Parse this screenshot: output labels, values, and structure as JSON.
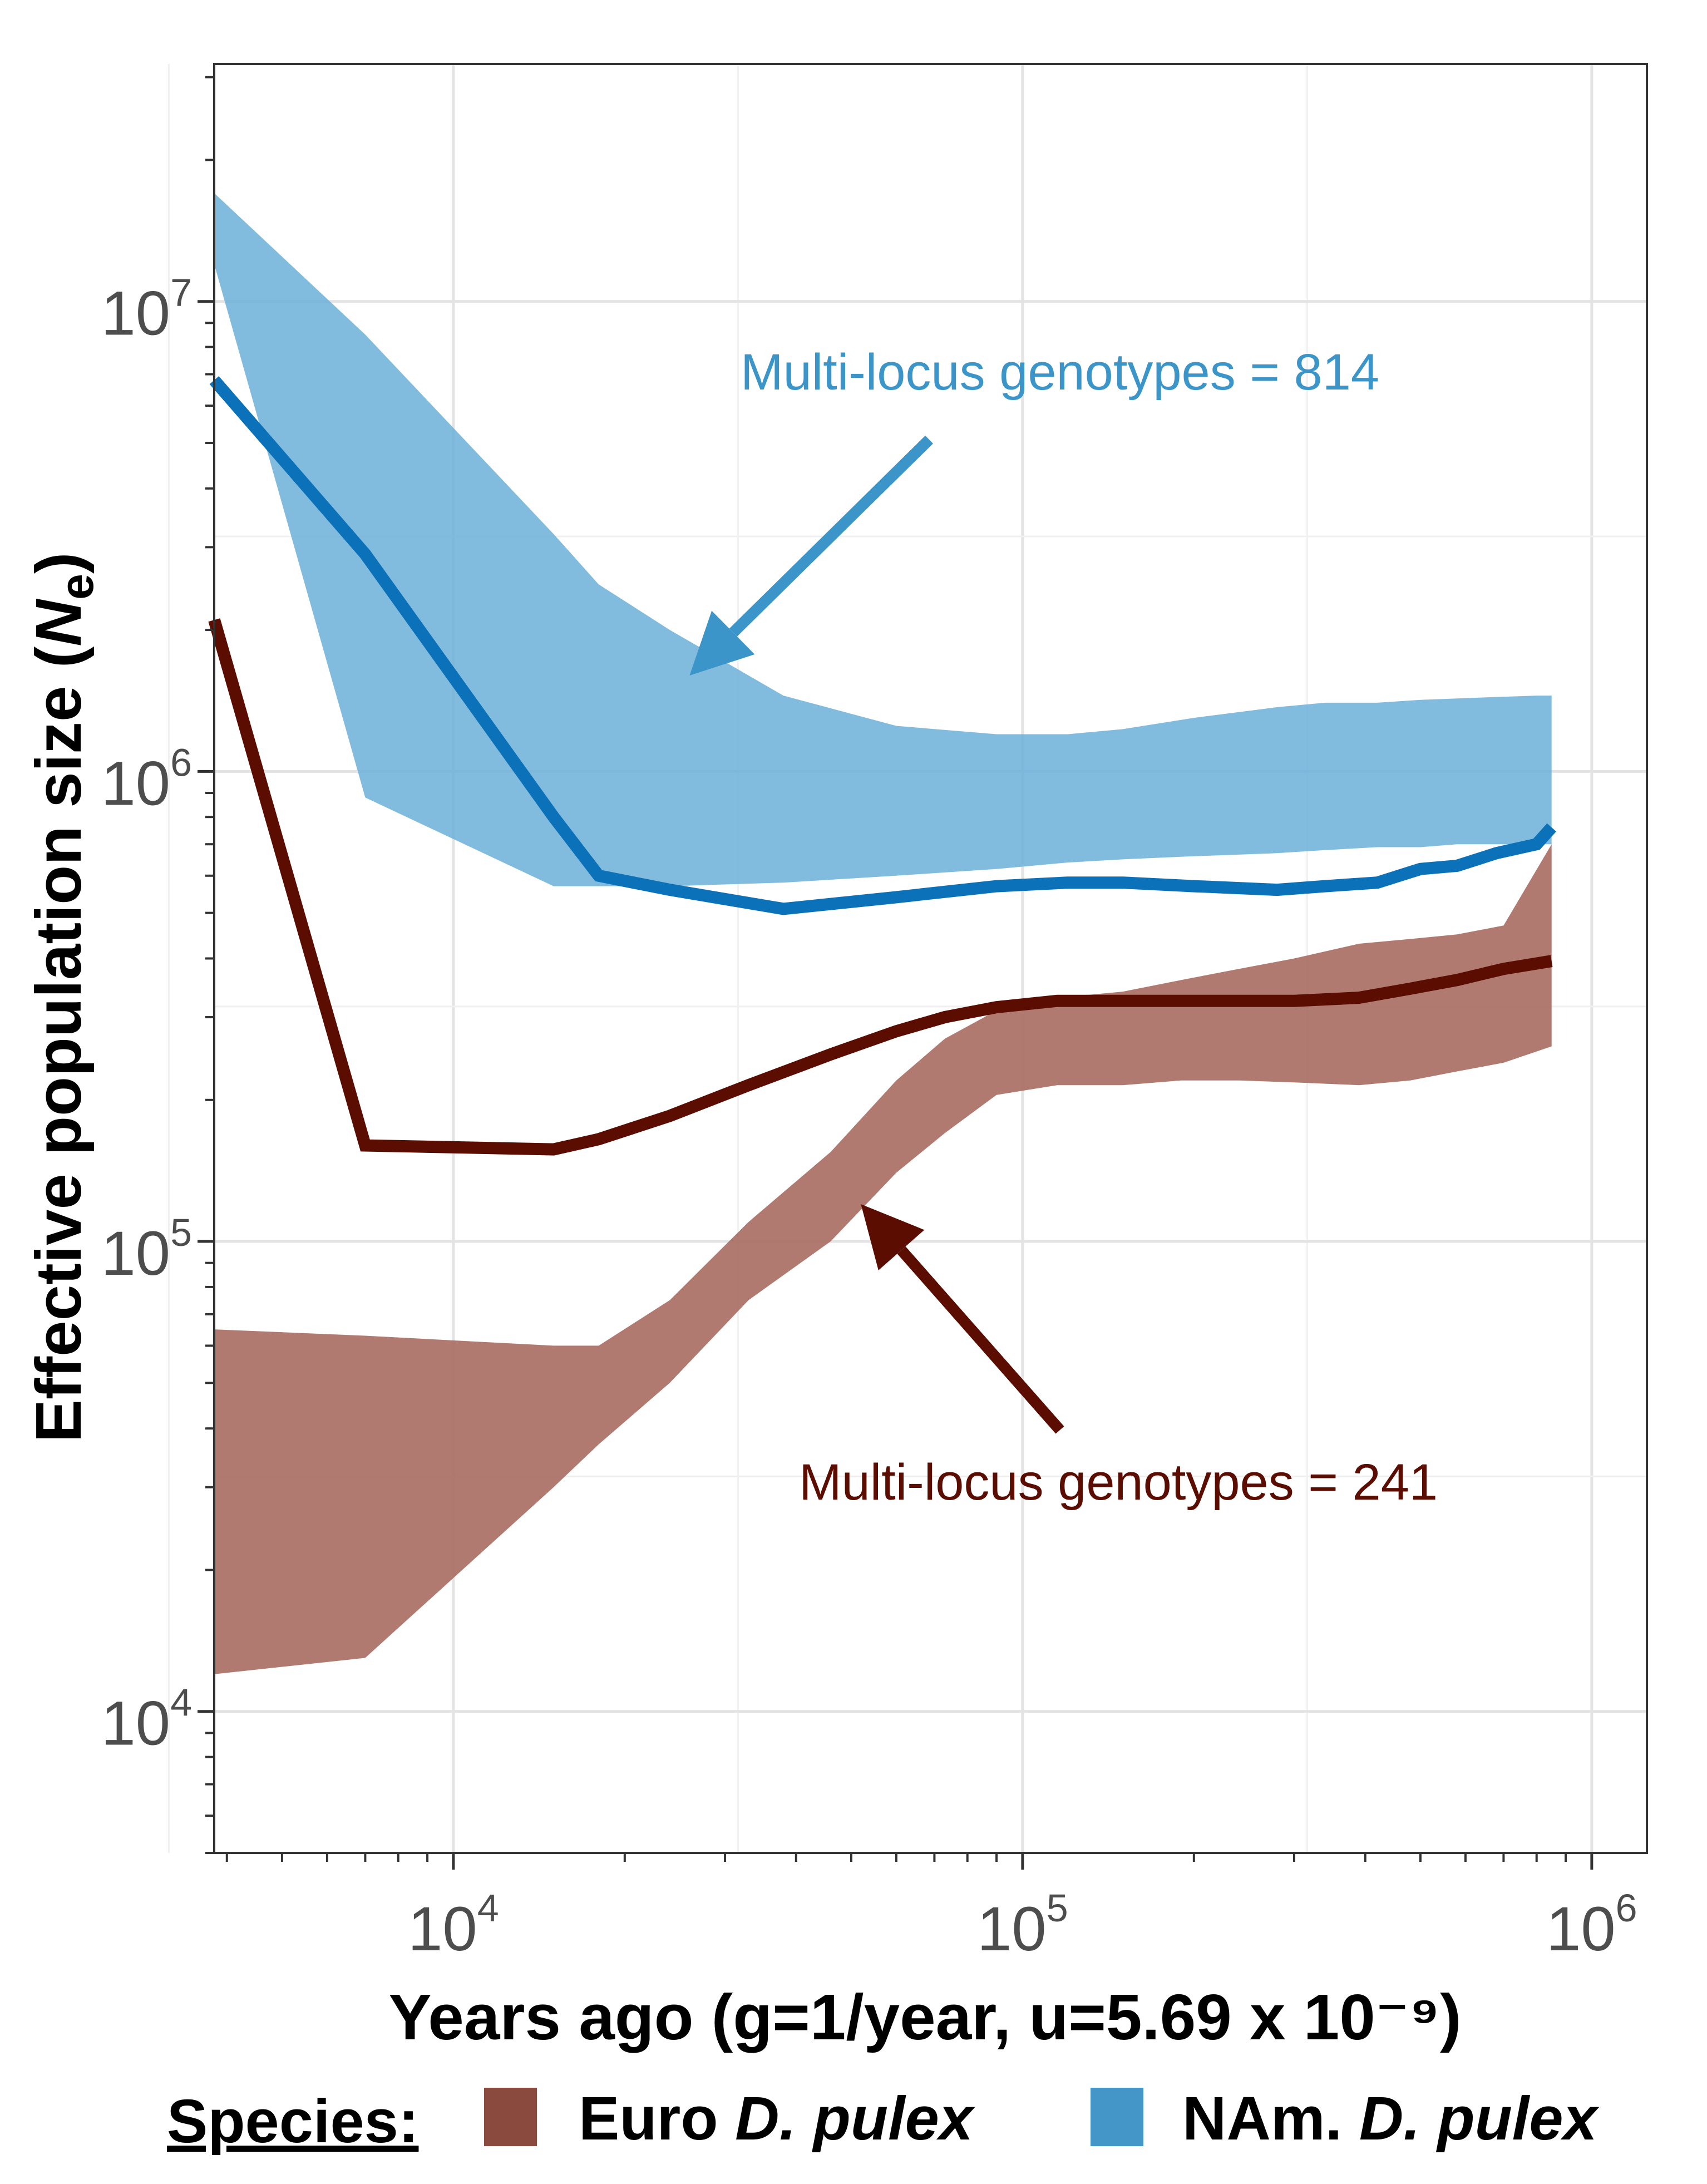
{
  "chart_data": {
    "type": "area",
    "xlabel": "Years ago (g=1/year, u=5.69 x 10⁻⁹)",
    "ylabel_main": "Effective population size (",
    "ylabel_var": "N",
    "ylabel_sub": "e",
    "ylabel_close": ")",
    "x_scale": "log",
    "y_scale": "log",
    "xlim": [
      3800,
      1250000
    ],
    "ylim": [
      5000,
      32000000
    ],
    "grid": true,
    "x_ticks": [
      {
        "value": 10000,
        "base": "10",
        "exp": "4"
      },
      {
        "value": 100000,
        "base": "10",
        "exp": "5"
      },
      {
        "value": 1000000,
        "base": "10",
        "exp": "6"
      }
    ],
    "y_ticks": [
      {
        "value": 10000,
        "base": "10",
        "exp": "4"
      },
      {
        "value": 100000,
        "base": "10",
        "exp": "5"
      },
      {
        "value": 1000000,
        "base": "10",
        "exp": "6"
      },
      {
        "value": 10000000,
        "base": "10",
        "exp": "7"
      }
    ],
    "legend": {
      "title": "Species:",
      "position": "bottom",
      "items": [
        {
          "label_plain": "Euro ",
          "label_italic": "D. pulex",
          "color": "#8b4a3e"
        },
        {
          "label_plain": "NAm. ",
          "label_italic": "D. pulex",
          "color": "#4496c9"
        }
      ]
    },
    "series": [
      {
        "name": "Euro D. pulex",
        "line_color": "#5a0d00",
        "band_color": "#a96b60",
        "x": [
          3800,
          7000,
          15000,
          18000,
          24000,
          33000,
          46000,
          60000,
          73000,
          90000,
          115000,
          150000,
          190000,
          240000,
          300000,
          390000,
          480000,
          580000,
          700000,
          850000
        ],
        "median": [
          2100000,
          160000,
          157000,
          165000,
          185000,
          215000,
          250000,
          280000,
          300000,
          315000,
          325000,
          325000,
          325000,
          325000,
          325000,
          330000,
          345000,
          360000,
          380000,
          395000
        ],
        "lower": [
          12000,
          13000,
          30000,
          37000,
          50000,
          75000,
          100000,
          140000,
          170000,
          205000,
          215000,
          215000,
          220000,
          220000,
          218000,
          215000,
          220000,
          230000,
          240000,
          260000
        ],
        "upper": [
          65000,
          63000,
          60000,
          60000,
          75000,
          110000,
          155000,
          220000,
          270000,
          310000,
          330000,
          340000,
          360000,
          380000,
          400000,
          430000,
          440000,
          450000,
          470000,
          700000
        ]
      },
      {
        "name": "NAm. D. pulex",
        "line_color": "#0b72b9",
        "band_color": "#6bb0d9",
        "x": [
          3800,
          7000,
          15000,
          18000,
          24000,
          38000,
          60000,
          90000,
          120000,
          150000,
          200000,
          280000,
          340000,
          420000,
          500000,
          580000,
          680000,
          800000,
          850000
        ],
        "median": [
          6800000,
          2900000,
          800000,
          600000,
          560000,
          510000,
          540000,
          570000,
          580000,
          580000,
          570000,
          560000,
          570000,
          580000,
          620000,
          630000,
          670000,
          700000,
          760000
        ],
        "lower": [
          12000000,
          880000,
          570000,
          570000,
          570000,
          580000,
          600000,
          620000,
          640000,
          650000,
          660000,
          670000,
          680000,
          690000,
          690000,
          700000,
          700000,
          700000,
          700000
        ],
        "upper": [
          17000000,
          8500000,
          3200000,
          2500000,
          2000000,
          1450000,
          1250000,
          1200000,
          1200000,
          1230000,
          1300000,
          1370000,
          1400000,
          1400000,
          1420000,
          1430000,
          1440000,
          1450000,
          1450000
        ]
      }
    ],
    "annotations": [
      {
        "text": "Multi-locus genotypes = 814",
        "color": "#3b95c9",
        "target_x": 26000,
        "target_y": 1600000
      },
      {
        "text": "Multi-locus genotypes = 241",
        "color": "#5a0d00",
        "target_x": 52000,
        "target_y": 120000
      }
    ]
  }
}
